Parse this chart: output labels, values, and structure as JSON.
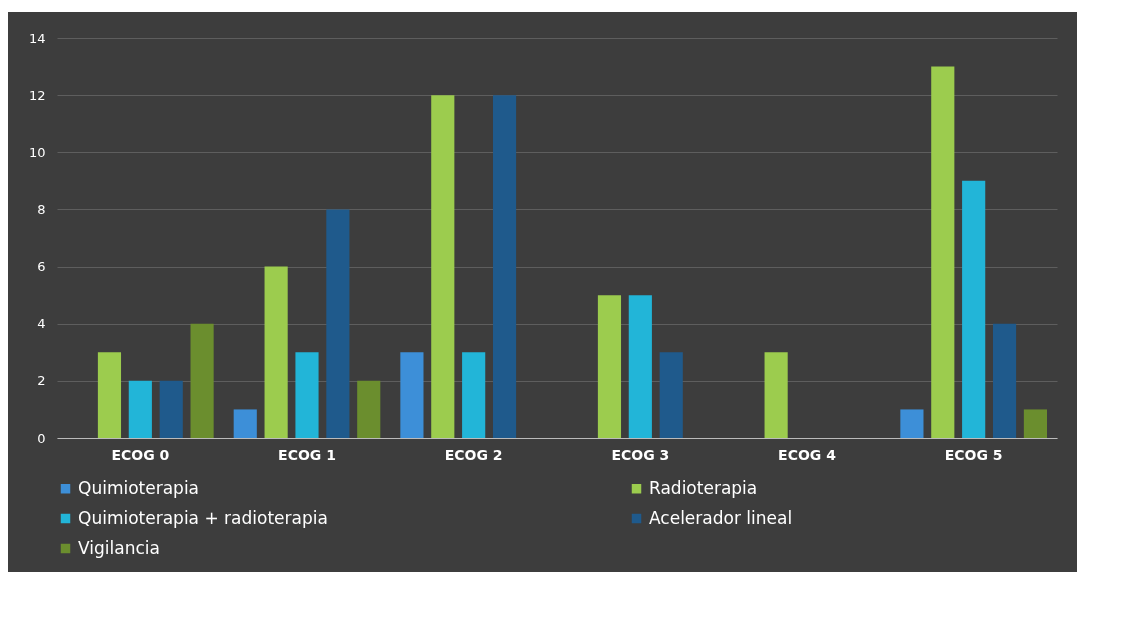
{
  "chart_data": {
    "type": "bar",
    "categories": [
      "ECOG 0",
      "ECOG 1",
      "ECOG 2",
      "ECOG 3",
      "ECOG 4",
      "ECOG 5"
    ],
    "series": [
      {
        "name": "Quimioterapia",
        "color": "#3d8fd8",
        "values": [
          0,
          1,
          3,
          0,
          0,
          1
        ]
      },
      {
        "name": "Radioterapia",
        "color": "#9ccc4e",
        "values": [
          3,
          6,
          12,
          5,
          3,
          13
        ]
      },
      {
        "name": "Quimioterapia + radioterapia",
        "color": "#22b5d8",
        "values": [
          2,
          3,
          3,
          5,
          0,
          9
        ]
      },
      {
        "name": "Acelerador lineal",
        "color": "#1f5a8c",
        "values": [
          2,
          8,
          12,
          3,
          0,
          4
        ]
      },
      {
        "name": "Vigilancia",
        "color": "#6b8e2e",
        "values": [
          4,
          2,
          0,
          0,
          0,
          1
        ]
      }
    ],
    "ylim": [
      0,
      14
    ],
    "yticks": [
      0,
      2,
      4,
      6,
      8,
      10,
      12,
      14
    ],
    "grid": "y",
    "legend": "bottom"
  }
}
